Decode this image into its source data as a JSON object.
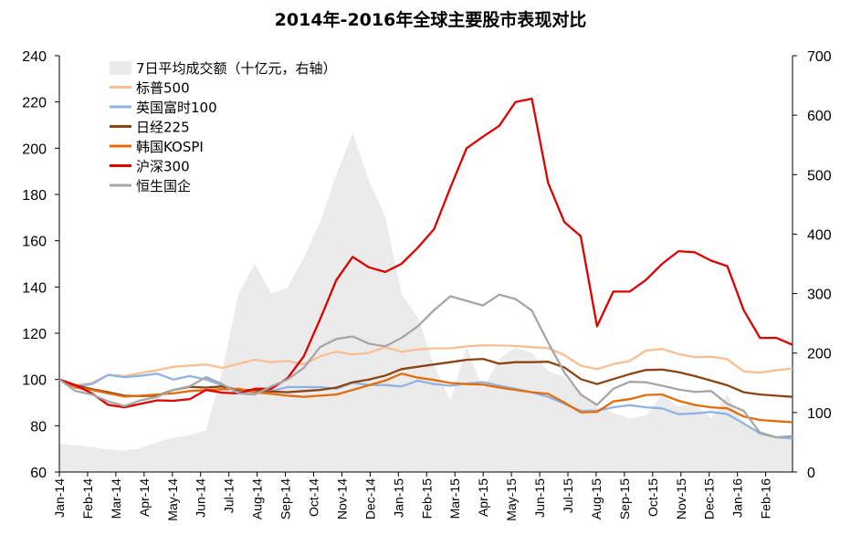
{
  "chart_data": {
    "type": "line",
    "title": "2014年-2016年全球主要股市表现对比",
    "x_ticks": [
      "Jan-14",
      "Feb-14",
      "Mar-14",
      "Apr-14",
      "May-14",
      "Jun-14",
      "Jul-14",
      "Aug-14",
      "Sep-14",
      "Oct-14",
      "Nov-14",
      "Dec-14",
      "Jan-15",
      "Feb-15",
      "Mar-15",
      "Apr-15",
      "May-15",
      "Jun-15",
      "Jul-15",
      "Aug-15",
      "Sep-15",
      "Oct-15",
      "Nov-15",
      "Dec-15",
      "Jan-16",
      "Feb-16"
    ],
    "ylim_left": [
      60,
      240
    ],
    "yticks_left": [
      60,
      80,
      100,
      120,
      140,
      160,
      180,
      200,
      220,
      240
    ],
    "ylim_right": [
      0,
      700
    ],
    "yticks_right": [
      0,
      100,
      200,
      300,
      400,
      500,
      600,
      700
    ],
    "grid": false,
    "legend_position": "top-left",
    "series": [
      {
        "name": "7日平均成交额（十亿元，右轴）",
        "kind": "area",
        "axis": "right",
        "color": "#ebebeb",
        "values": [
          48,
          45,
          42,
          38,
          36,
          40,
          50,
          58,
          62,
          70,
          170,
          300,
          350,
          300,
          310,
          360,
          420,
          500,
          570,
          490,
          430,
          300,
          260,
          180,
          120,
          210,
          140,
          190,
          210,
          200,
          170,
          160,
          130,
          110,
          100,
          90,
          95,
          130,
          110,
          115,
          90,
          130,
          80,
          70,
          60,
          55
        ]
      },
      {
        "name": "标普500",
        "kind": "line",
        "axis": "left",
        "color": "#f9be92",
        "values": [
          100,
          97.5,
          98.5,
          102,
          101.5,
          102.8,
          104,
          105.5,
          106,
          106.5,
          105,
          106.8,
          108.5,
          107.5,
          108,
          106.5,
          110,
          112,
          110.8,
          111.5,
          114,
          112,
          113,
          113.5,
          113.5,
          114.3,
          114.8,
          114.7,
          114.5,
          114,
          113.6,
          110.5,
          106,
          104.5,
          106.6,
          108,
          112.5,
          113.2,
          111,
          109.6,
          109.8,
          108.8,
          103.5,
          103,
          104,
          104.8
        ]
      },
      {
        "name": "英国富时100",
        "kind": "line",
        "axis": "left",
        "color": "#8fb4e3",
        "values": [
          100,
          97,
          98,
          102,
          101,
          101.6,
          102.5,
          100,
          101.5,
          100,
          97.5,
          95,
          94.5,
          95,
          96.7,
          96.7,
          96.7,
          96,
          98.6,
          97.6,
          97.6,
          97,
          99.5,
          98,
          97.3,
          98.2,
          98.9,
          97.3,
          96,
          94.5,
          92.5,
          89.5,
          86.5,
          86.5,
          88,
          88.9,
          88,
          87.5,
          85,
          85.3,
          86,
          85,
          81,
          76.7,
          75,
          74.5
        ]
      },
      {
        "name": "日经225",
        "kind": "line",
        "axis": "left",
        "color": "#8b4513",
        "values": [
          100,
          97.5,
          95.8,
          94.5,
          93,
          92.8,
          93,
          95.5,
          96.8,
          96.5,
          97,
          95.5,
          95.5,
          94.8,
          94.5,
          95,
          95.5,
          96.5,
          98.8,
          100,
          101.7,
          104.5,
          105.5,
          106.5,
          107.5,
          108.5,
          108.9,
          106.8,
          107.5,
          107.5,
          107.7,
          105.2,
          100.2,
          98,
          100.2,
          102.3,
          104.1,
          104.3,
          103.2,
          101.5,
          99.5,
          97.5,
          94.5,
          93.5,
          93,
          92.5
        ]
      },
      {
        "name": "韩国KOSPI",
        "kind": "line",
        "axis": "left",
        "color": "#e46c0a",
        "values": [
          100,
          96.5,
          95.5,
          94,
          92.6,
          93,
          93.5,
          94,
          95,
          95.4,
          95.8,
          96,
          94.5,
          93.8,
          93,
          92.5,
          93,
          93.5,
          95.5,
          97.5,
          99.5,
          102.5,
          100.8,
          99.8,
          98.5,
          98,
          97.8,
          96.5,
          95.5,
          94.5,
          93.8,
          90,
          85.8,
          86,
          90.5,
          91.5,
          93.3,
          93.5,
          90.8,
          89,
          88,
          87.5,
          84,
          82.5,
          82,
          81.5
        ]
      },
      {
        "name": "沪深300",
        "kind": "line",
        "axis": "left",
        "color": "#e00000",
        "values": [
          100,
          97.5,
          94,
          89,
          88,
          89.5,
          91,
          90.8,
          91.5,
          95.5,
          94.3,
          94,
          96,
          96,
          100.5,
          110,
          126,
          143,
          153,
          148.5,
          146.5,
          150,
          157,
          165,
          183,
          200,
          205,
          209.7,
          220,
          221.4,
          185,
          168,
          162,
          123,
          138,
          138,
          143,
          150,
          155.5,
          155,
          151.4,
          149,
          130,
          118,
          118,
          115
        ]
      },
      {
        "name": "恒生国企",
        "kind": "line",
        "axis": "left",
        "color": "#a6a6a6",
        "values": [
          100,
          95,
          93.5,
          90.5,
          88.5,
          91,
          92.5,
          95.5,
          97,
          101,
          98,
          94,
          93.5,
          97,
          100,
          105,
          114,
          117.5,
          118.6,
          115.5,
          114.3,
          118,
          123,
          130,
          136,
          134,
          132,
          136.7,
          134.8,
          129.8,
          116,
          103,
          93.5,
          89,
          96,
          99,
          98.8,
          97.3,
          95.7,
          94.6,
          95,
          89.5,
          86.5,
          77,
          75,
          75.5
        ]
      }
    ]
  }
}
